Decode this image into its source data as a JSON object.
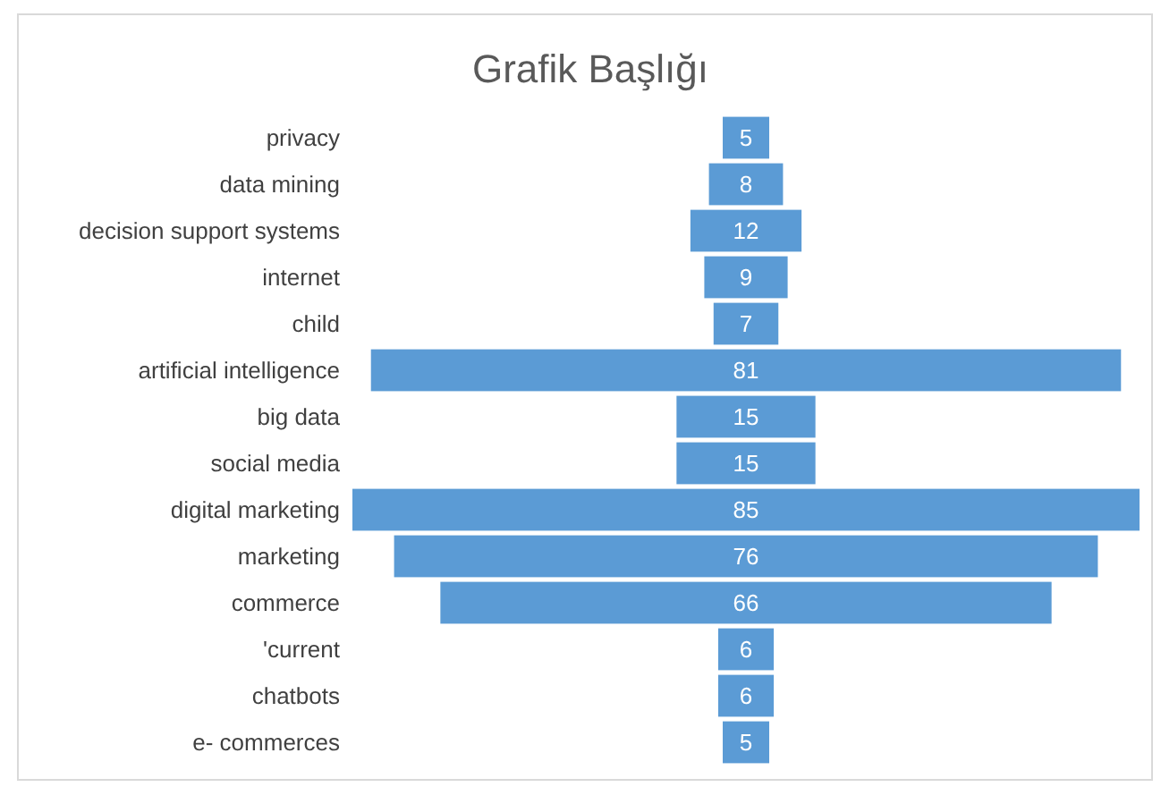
{
  "chart_data": {
    "type": "other",
    "title": "Grafik Başlığı",
    "categories": [
      "privacy",
      "data mining",
      "decision support systems",
      "internet",
      "child",
      "artificial intelligence",
      "big data",
      "social media",
      "digital marketing",
      "marketing",
      "commerce",
      "'current",
      "chatbots",
      "e- commerces"
    ],
    "values": [
      5,
      8,
      12,
      9,
      7,
      81,
      15,
      15,
      85,
      76,
      66,
      6,
      6,
      5
    ],
    "color": "#5b9bd5",
    "data_labels": true
  }
}
